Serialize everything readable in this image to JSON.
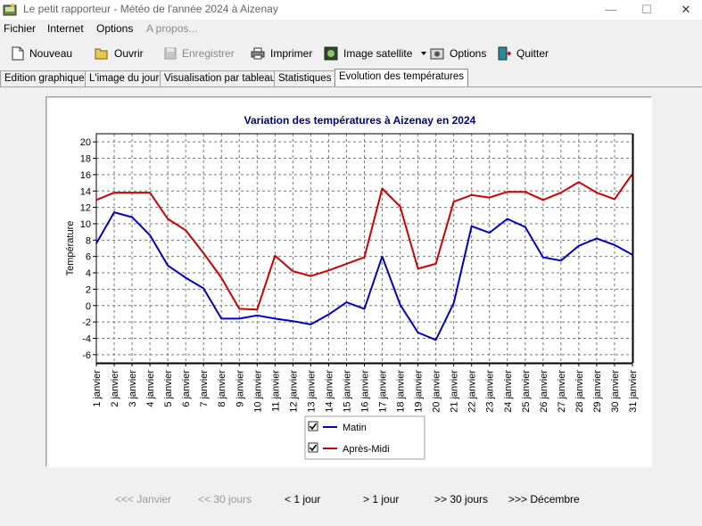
{
  "window": {
    "title": "Le petit rapporteur - Météo de l'année 2024 à Aizenay",
    "minimize": "—",
    "maximize": "☐",
    "close": "✕"
  },
  "menu": [
    "Fichier",
    "Internet",
    "Options",
    "A propos..."
  ],
  "toolbar": {
    "nouveau": "Nouveau",
    "ouvrir": "Ouvrir",
    "enregistrer": "Enregistrer",
    "imprimer": "Imprimer",
    "image_satellite": "Image satellite",
    "options": "Options",
    "quitter": "Quitter"
  },
  "tabs": [
    "Edition graphique",
    "L'image du jour",
    "Visualisation par tableau",
    "Statistiques",
    "Evolution des températures"
  ],
  "navigation": {
    "prev_year": "<<< Janvier",
    "prev_30": "<< 30 jours",
    "prev_1": "< 1 jour",
    "next_1": "> 1 jour",
    "next_30": ">> 30 jours",
    "next_year": ">>> Décembre"
  },
  "colors": {
    "matin": "#0000c8",
    "apres_midi": "#d00000",
    "title": "#000080"
  },
  "chart_data": {
    "type": "line",
    "title": "Variation des températures à Aizenay en 2024",
    "xlabel": "",
    "ylabel": "Température",
    "ylim": [
      -7,
      21
    ],
    "yticks": [
      -6,
      -4,
      -2,
      0,
      2,
      4,
      6,
      8,
      10,
      12,
      14,
      16,
      18,
      20
    ],
    "grid": true,
    "legend": "bottom-center",
    "categories": [
      "1 janvier",
      "2 janvier",
      "3 janvier",
      "4 janvier",
      "5 janvier",
      "6 janvier",
      "7 janvier",
      "8 janvier",
      "9 janvier",
      "10 janvier",
      "11 janvier",
      "12 janvier",
      "13 janvier",
      "14 janvier",
      "15 janvier",
      "16 janvier",
      "17 janvier",
      "18 janvier",
      "19 janvier",
      "20 janvier",
      "21 janvier",
      "22 janvier",
      "23 janvier",
      "24 janvier",
      "25 janvier",
      "26 janvier",
      "27 janvier",
      "28 janvier",
      "29 janvier",
      "30 janvier",
      "31 janvier"
    ],
    "series": [
      {
        "name": "Matin",
        "checked": true,
        "values": [
          7.6,
          11.4,
          10.8,
          8.6,
          4.9,
          3.4,
          2.1,
          -1.6,
          -1.6,
          -1.2,
          -1.6,
          -1.9,
          -2.3,
          -1.1,
          0.4,
          -0.4,
          6.0,
          0.1,
          -3.3,
          -4.2,
          0.3,
          9.7,
          8.9,
          10.6,
          9.6,
          5.9,
          5.5,
          7.3,
          8.2,
          7.4,
          6.2
        ]
      },
      {
        "name": "Après-Midi",
        "checked": true,
        "values": [
          12.9,
          13.8,
          13.8,
          13.8,
          10.6,
          9.2,
          6.4,
          3.4,
          -0.4,
          -0.5,
          6.1,
          4.2,
          3.6,
          4.3,
          5.1,
          5.9,
          14.3,
          12.1,
          4.5,
          5.1,
          12.7,
          13.5,
          13.2,
          13.9,
          13.9,
          12.9,
          13.8,
          15.1,
          13.8,
          13.0,
          16.1
        ]
      }
    ]
  }
}
